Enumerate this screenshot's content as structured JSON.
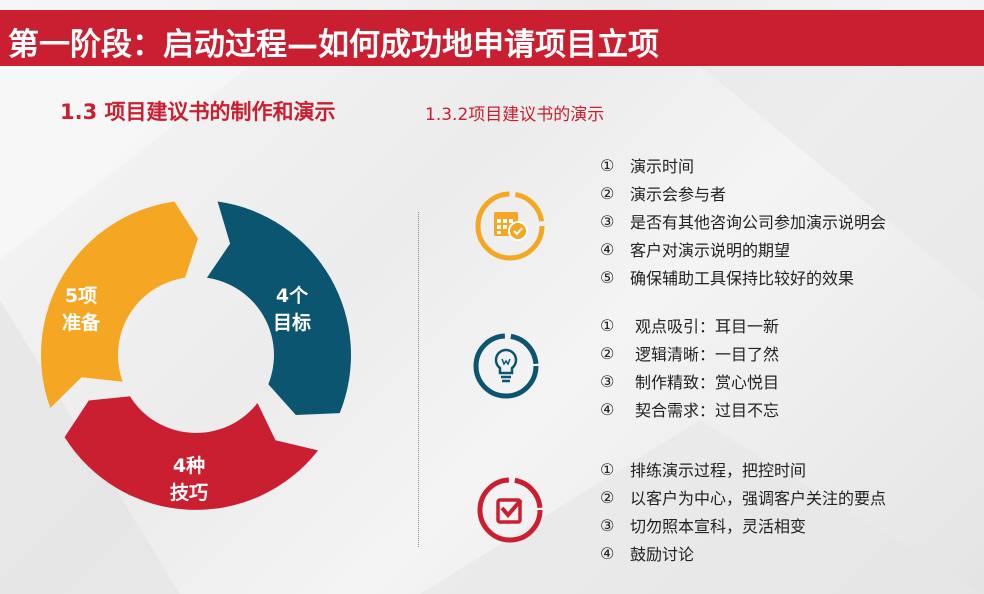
{
  "header": {
    "title": "第一阶段：启动过程—如何成功地申请项目立项"
  },
  "section": {
    "title": "1.3 项目建议书的制作和演示",
    "subtitle": "1.3.2项目建议书的演示"
  },
  "cycle": {
    "segments": [
      {
        "label_line1": "5项",
        "label_line2": "准备",
        "color": "#f5a623"
      },
      {
        "label_line1": "4个",
        "label_line2": "目标",
        "color": "#0b5570"
      },
      {
        "label_line1": "4种",
        "label_line2": "技巧",
        "color": "#c91f30"
      }
    ]
  },
  "groups": [
    {
      "icon": "calendar-clock-icon",
      "color": "#f5a623",
      "items": [
        {
          "num": "①",
          "text": "演示时间"
        },
        {
          "num": "②",
          "text": "演示会参与者"
        },
        {
          "num": "③",
          "text": "是否有其他咨询公司参加演示说明会"
        },
        {
          "num": "④",
          "text": "客户对演示说明的期望"
        },
        {
          "num": "⑤",
          "text": "确保辅助工具保持比较好的效果"
        }
      ]
    },
    {
      "icon": "lightbulb-icon",
      "color": "#0b5570",
      "items": [
        {
          "num": "①",
          "text": "观点吸引：耳目一新"
        },
        {
          "num": "②",
          "text": "逻辑清晰：一目了然"
        },
        {
          "num": "③",
          "text": "制作精致：赏心悦目"
        },
        {
          "num": "④",
          "text": "契合需求：过目不忘"
        }
      ]
    },
    {
      "icon": "checkbox-icon",
      "color": "#c91f30",
      "items": [
        {
          "num": "①",
          "text": "排练演示过程，把控时间"
        },
        {
          "num": "②",
          "text": "以客户为中心，强调客户关注的要点"
        },
        {
          "num": "③",
          "text": "切勿照本宣科，灵活相变"
        },
        {
          "num": "④",
          "text": "鼓励讨论"
        }
      ]
    }
  ]
}
